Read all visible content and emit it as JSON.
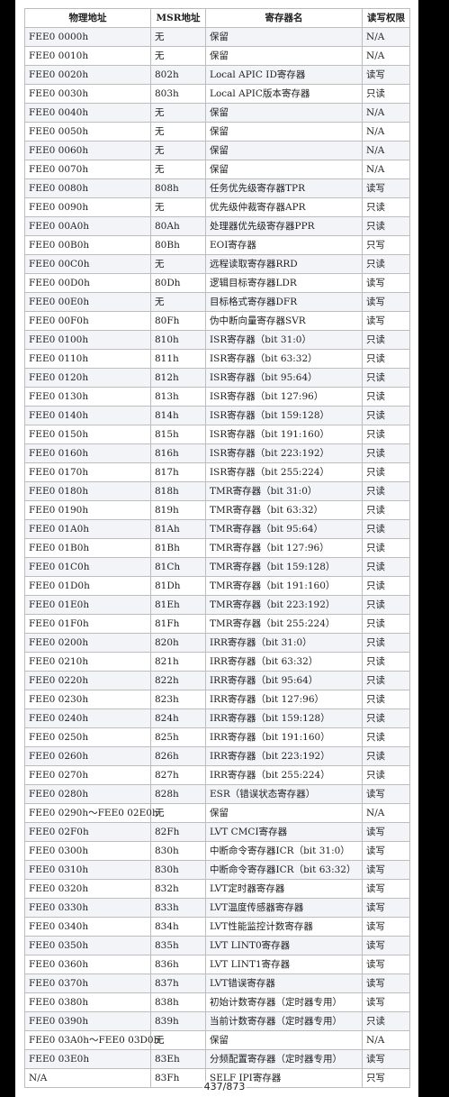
{
  "headers": [
    "物理地址",
    "MSR地址",
    "寄存器名",
    "读写权限"
  ],
  "rows": [
    [
      "FEE0 0000h",
      "无",
      "保留",
      "N/A"
    ],
    [
      "FEE0 0010h",
      "无",
      "保留",
      "N/A"
    ],
    [
      "FEE0 0020h",
      "802h",
      "Local APIC ID寄存器",
      "读写"
    ],
    [
      "FEE0 0030h",
      "803h",
      "Local APIC版本寄存器",
      "只读"
    ],
    [
      "FEE0 0040h",
      "无",
      "保留",
      "N/A"
    ],
    [
      "FEE0 0050h",
      "无",
      "保留",
      "N/A"
    ],
    [
      "FEE0 0060h",
      "无",
      "保留",
      "N/A"
    ],
    [
      "FEE0 0070h",
      "无",
      "保留",
      "N/A"
    ],
    [
      "FEE0 0080h",
      "808h",
      "任务优先级寄存器TPR",
      "读写"
    ],
    [
      "FEE0 0090h",
      "无",
      "优先级仲裁寄存器APR",
      "只读"
    ],
    [
      "FEE0 00A0h",
      "80Ah",
      "处理器优先级寄存器PPR",
      "只读"
    ],
    [
      "FEE0 00B0h",
      "80Bh",
      "EOI寄存器",
      "只写"
    ],
    [
      "FEE0 00C0h",
      "无",
      "远程读取寄存器RRD",
      "只读"
    ],
    [
      "FEE0 00D0h",
      "80Dh",
      "逻辑目标寄存器LDR",
      "读写"
    ],
    [
      "FEE0 00E0h",
      "无",
      "目标格式寄存器DFR",
      "读写"
    ],
    [
      "FEE0 00F0h",
      "80Fh",
      "伪中断向量寄存器SVR",
      "读写"
    ],
    [
      "FEE0 0100h",
      "810h",
      "ISR寄存器（bit 31:0）",
      "只读"
    ],
    [
      "FEE0 0110h",
      "811h",
      "ISR寄存器（bit 63:32）",
      "只读"
    ],
    [
      "FEE0 0120h",
      "812h",
      "ISR寄存器（bit 95:64）",
      "只读"
    ],
    [
      "FEE0 0130h",
      "813h",
      "ISR寄存器（bit 127:96）",
      "只读"
    ],
    [
      "FEE0 0140h",
      "814h",
      "ISR寄存器（bit 159:128）",
      "只读"
    ],
    [
      "FEE0 0150h",
      "815h",
      "ISR寄存器（bit 191:160）",
      "只读"
    ],
    [
      "FEE0 0160h",
      "816h",
      "ISR寄存器（bit 223:192）",
      "只读"
    ],
    [
      "FEE0 0170h",
      "817h",
      "ISR寄存器（bit 255:224）",
      "只读"
    ],
    [
      "FEE0 0180h",
      "818h",
      "TMR寄存器（bit 31:0）",
      "只读"
    ],
    [
      "FEE0 0190h",
      "819h",
      "TMR寄存器（bit 63:32）",
      "只读"
    ],
    [
      "FEE0 01A0h",
      "81Ah",
      "TMR寄存器（bit 95:64）",
      "只读"
    ],
    [
      "FEE0 01B0h",
      "81Bh",
      "TMR寄存器（bit 127:96）",
      "只读"
    ],
    [
      "FEE0 01C0h",
      "81Ch",
      "TMR寄存器（bit 159:128）",
      "只读"
    ],
    [
      "FEE0 01D0h",
      "81Dh",
      "TMR寄存器（bit 191:160）",
      "只读"
    ],
    [
      "FEE0 01E0h",
      "81Eh",
      "TMR寄存器（bit 223:192）",
      "只读"
    ],
    [
      "FEE0 01F0h",
      "81Fh",
      "TMR寄存器（bit 255:224）",
      "只读"
    ],
    [
      "FEE0 0200h",
      "820h",
      "IRR寄存器（bit 31:0）",
      "只读"
    ],
    [
      "FEE0 0210h",
      "821h",
      "IRR寄存器（bit 63:32）",
      "只读"
    ],
    [
      "FEE0 0220h",
      "822h",
      "IRR寄存器（bit 95:64）",
      "只读"
    ],
    [
      "FEE0 0230h",
      "823h",
      "IRR寄存器（bit 127:96）",
      "只读"
    ],
    [
      "FEE0 0240h",
      "824h",
      "IRR寄存器（bit 159:128）",
      "只读"
    ],
    [
      "FEE0 0250h",
      "825h",
      "IRR寄存器（bit 191:160）",
      "只读"
    ],
    [
      "FEE0 0260h",
      "826h",
      "IRR寄存器（bit 223:192）",
      "只读"
    ],
    [
      "FEE0 0270h",
      "827h",
      "IRR寄存器（bit 255:224）",
      "只读"
    ],
    [
      "FEE0 0280h",
      "828h",
      "ESR（错误状态寄存器）",
      "读写"
    ],
    [
      "FEE0 0290h～FEE0 02E0h",
      "无",
      "保留",
      "N/A"
    ],
    [
      "FEE0 02F0h",
      "82Fh",
      "LVT CMCI寄存器",
      "读写"
    ],
    [
      "FEE0 0300h",
      "830h",
      "中断命令寄存器ICR（bit 31:0）",
      "读写"
    ],
    [
      "FEE0 0310h",
      "830h",
      "中断命令寄存器ICR（bit 63:32）",
      "读写"
    ],
    [
      "FEE0 0320h",
      "832h",
      "LVT定时器寄存器",
      "读写"
    ],
    [
      "FEE0 0330h",
      "833h",
      "LVT温度传感器寄存器",
      "读写"
    ],
    [
      "FEE0 0340h",
      "834h",
      "LVT性能监控计数寄存器",
      "读写"
    ],
    [
      "FEE0 0350h",
      "835h",
      "LVT LINT0寄存器",
      "读写"
    ],
    [
      "FEE0 0360h",
      "836h",
      "LVT LINT1寄存器",
      "读写"
    ],
    [
      "FEE0 0370h",
      "837h",
      "LVT错误寄存器",
      "读写"
    ],
    [
      "FEE0 0380h",
      "838h",
      "初始计数寄存器（定时器专用）",
      "读写"
    ],
    [
      "FEE0 0390h",
      "839h",
      "当前计数寄存器（定时器专用）",
      "只读"
    ],
    [
      "FEE0 03A0h～FEE0 03D0h",
      "无",
      "保留",
      "N/A"
    ],
    [
      "FEE0 03E0h",
      "83Eh",
      "分频配置寄存器（定时器专用）",
      "读写"
    ],
    [
      "N/A",
      "83Fh",
      "SELF IPI寄存器",
      "只写"
    ]
  ],
  "page_number": "437/873"
}
